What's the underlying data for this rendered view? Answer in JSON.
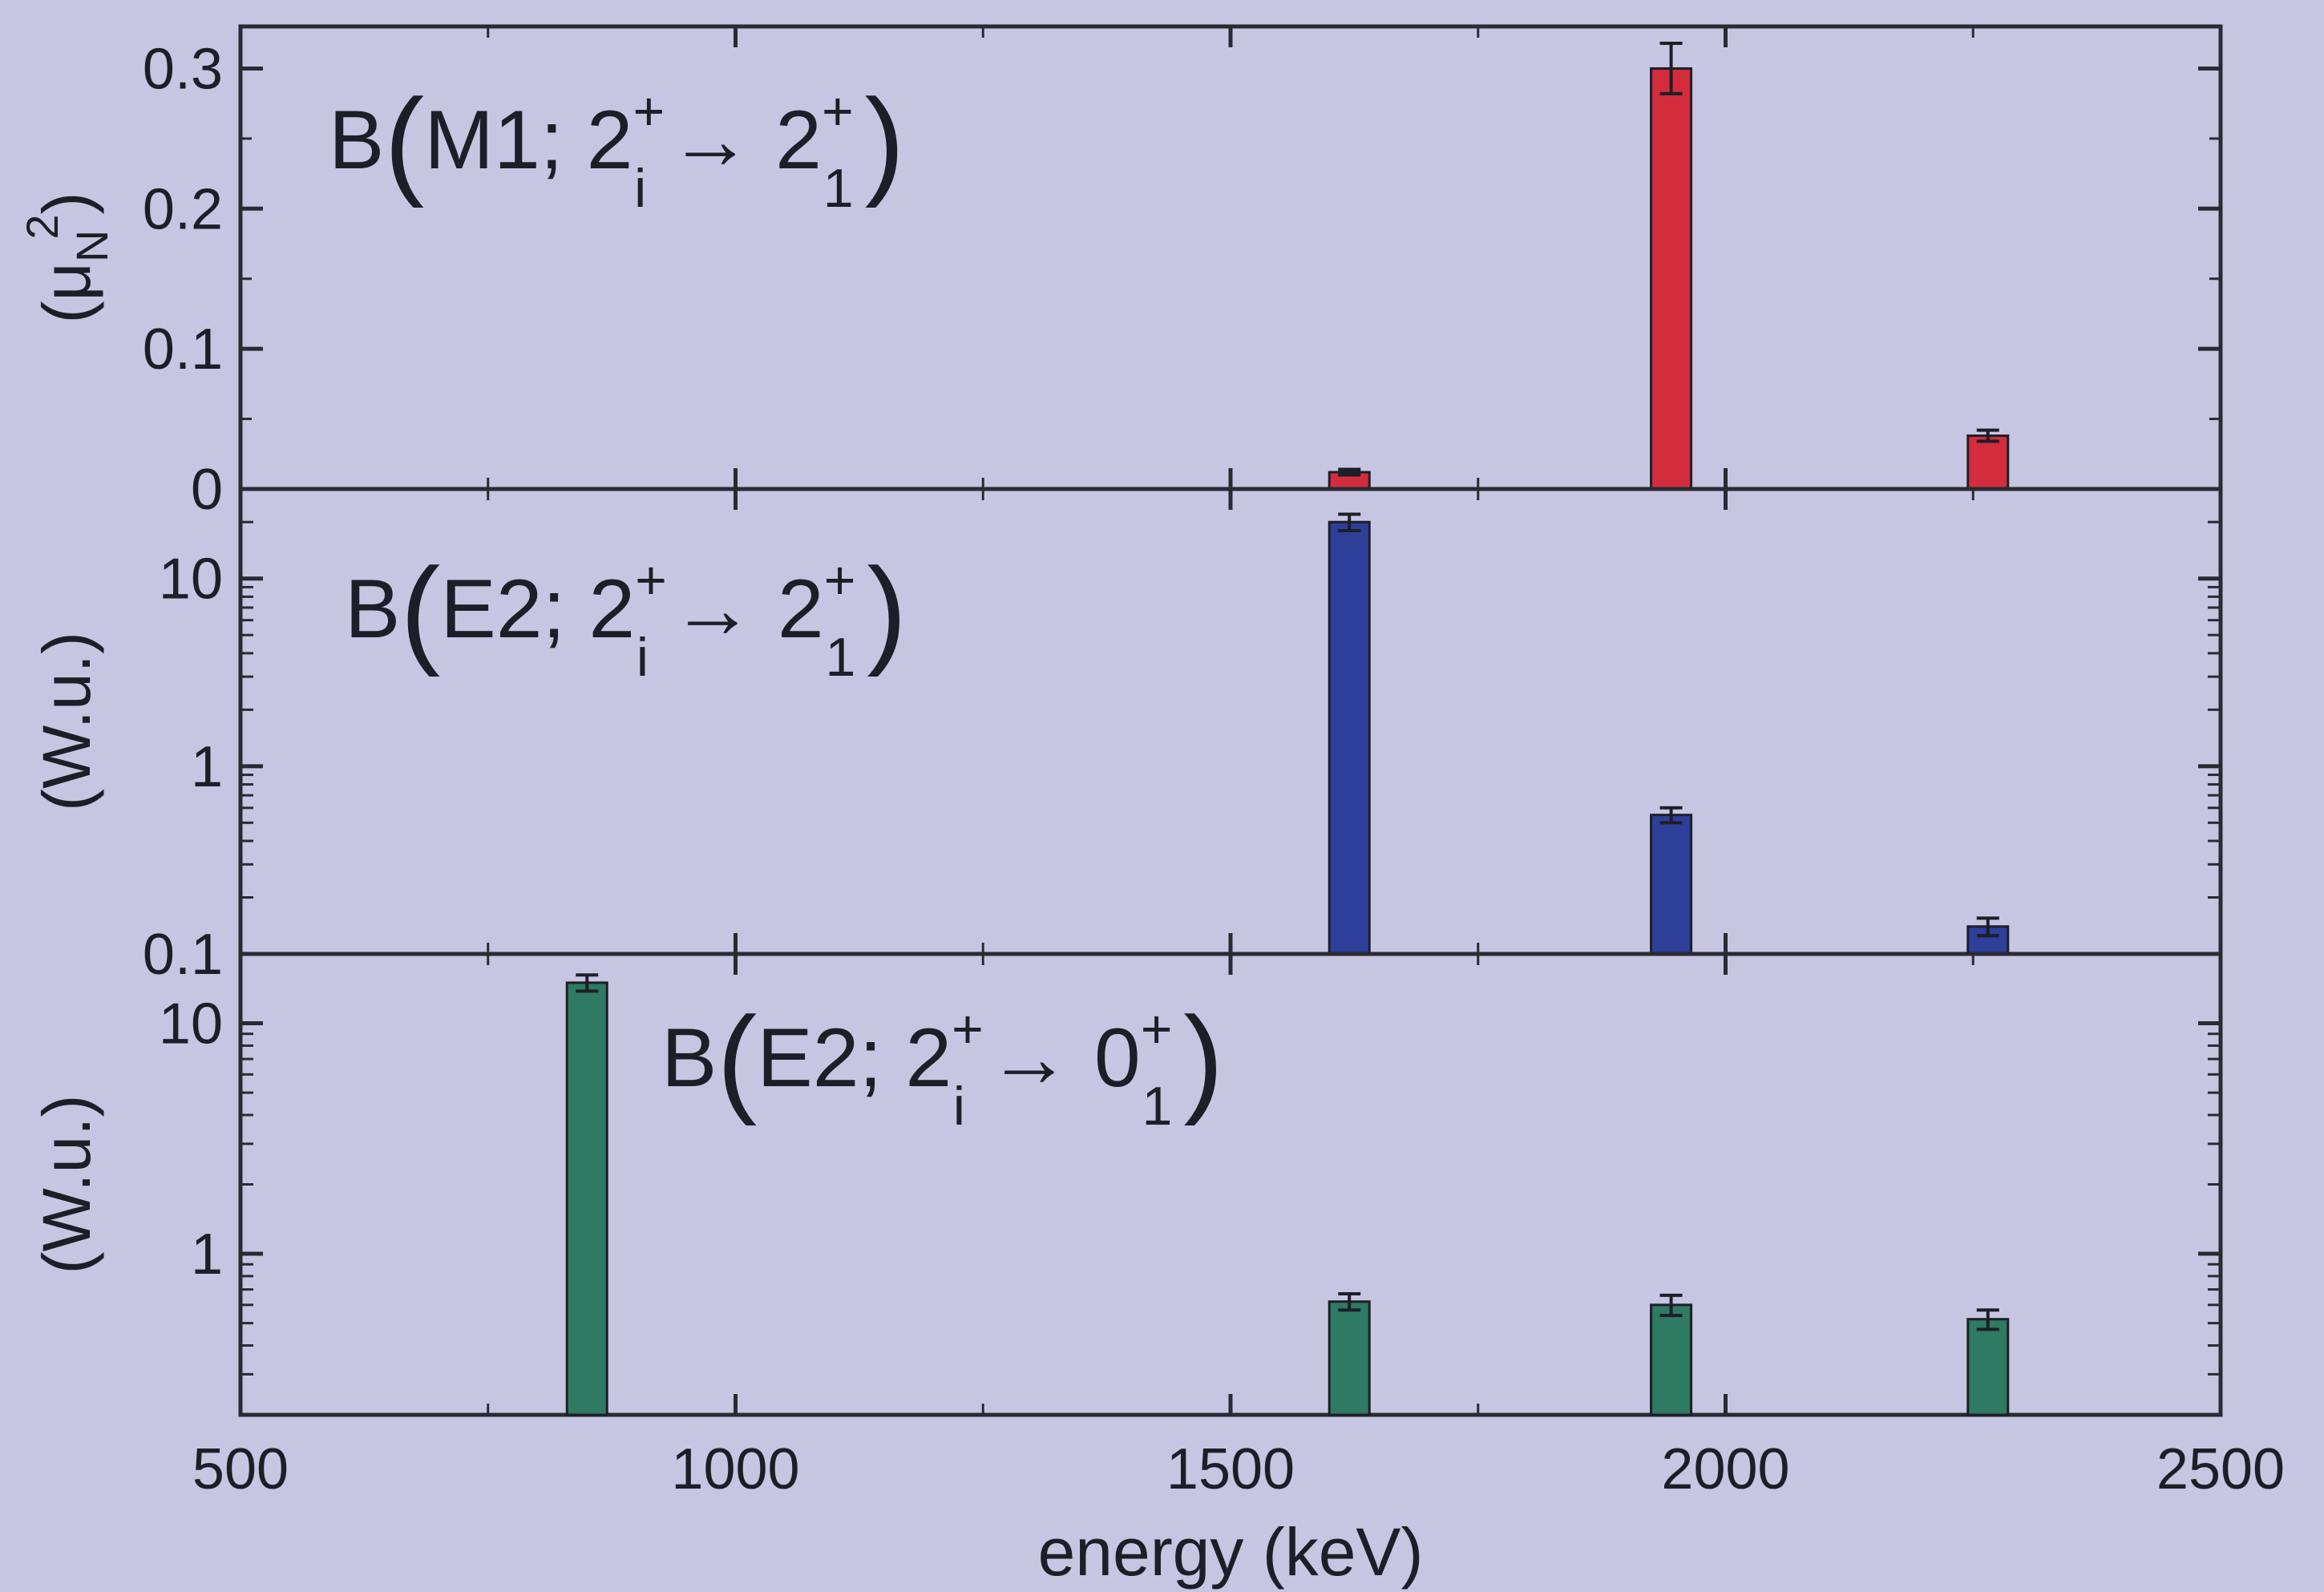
{
  "chart_data": [
    {
      "type": "bar",
      "panel": "top",
      "label": {
        "main": "B",
        "mult": "M1; 2",
        "sup1": "+",
        "sub1": "i",
        "arrow": "→ 2",
        "sup2": "+",
        "sub2": "1"
      },
      "ylabel": {
        "main": "(μ",
        "sub": "N",
        "sup": "2",
        "close": ")"
      },
      "yscale": "linear",
      "ylim": [
        0,
        0.33
      ],
      "yticks": [
        0,
        0.1,
        0.2,
        0.3
      ],
      "yticklabels": [
        "0",
        "0.1",
        "0.2",
        "0.3"
      ],
      "color": "#d32c3c",
      "x": [
        1620,
        1945,
        2265
      ],
      "values": [
        0.012,
        0.3,
        0.038
      ],
      "errors": [
        0.002,
        0.018,
        0.004
      ]
    },
    {
      "type": "bar",
      "panel": "middle",
      "label": {
        "main": "B",
        "mult": "E2; 2",
        "sup1": "+",
        "sub1": "i",
        "arrow": "→ 2",
        "sup2": "+",
        "sub2": "1"
      },
      "ylabel": "(W.u.)",
      "yscale": "log",
      "ylim": [
        0.1,
        30
      ],
      "yticks": [
        0.1,
        1,
        10
      ],
      "yticklabels": [
        "0.1",
        "1",
        "10"
      ],
      "color": "#2e3f9a",
      "x": [
        1620,
        1945,
        2265
      ],
      "values": [
        20,
        0.55,
        0.14
      ],
      "errors": [
        2,
        0.05,
        0.015
      ]
    },
    {
      "type": "bar",
      "panel": "bottom",
      "label": {
        "main": "B",
        "mult": "E2; 2",
        "sup1": "+",
        "sub1": "i",
        "arrow": "→ 0",
        "sup2": "+",
        "sub2": "1"
      },
      "ylabel": "(W.u.)",
      "yscale": "log",
      "ylim": [
        0.2,
        20
      ],
      "yticks": [
        1,
        10
      ],
      "yticklabels": [
        "1",
        "10"
      ],
      "color": "#2f7a62",
      "x": [
        850,
        1620,
        1945,
        2265
      ],
      "values": [
        15,
        0.62,
        0.6,
        0.52
      ],
      "errors": [
        1.2,
        0.05,
        0.06,
        0.05
      ]
    }
  ],
  "xaxis": {
    "label": "energy (keV)",
    "xlim": [
      500,
      2500
    ],
    "ticks": [
      500,
      1000,
      1500,
      2000,
      2500
    ],
    "ticklabels": [
      "500",
      "1000",
      "1500",
      "2000",
      "2500"
    ],
    "minor": [
      750,
      1250,
      1750,
      2250
    ]
  }
}
